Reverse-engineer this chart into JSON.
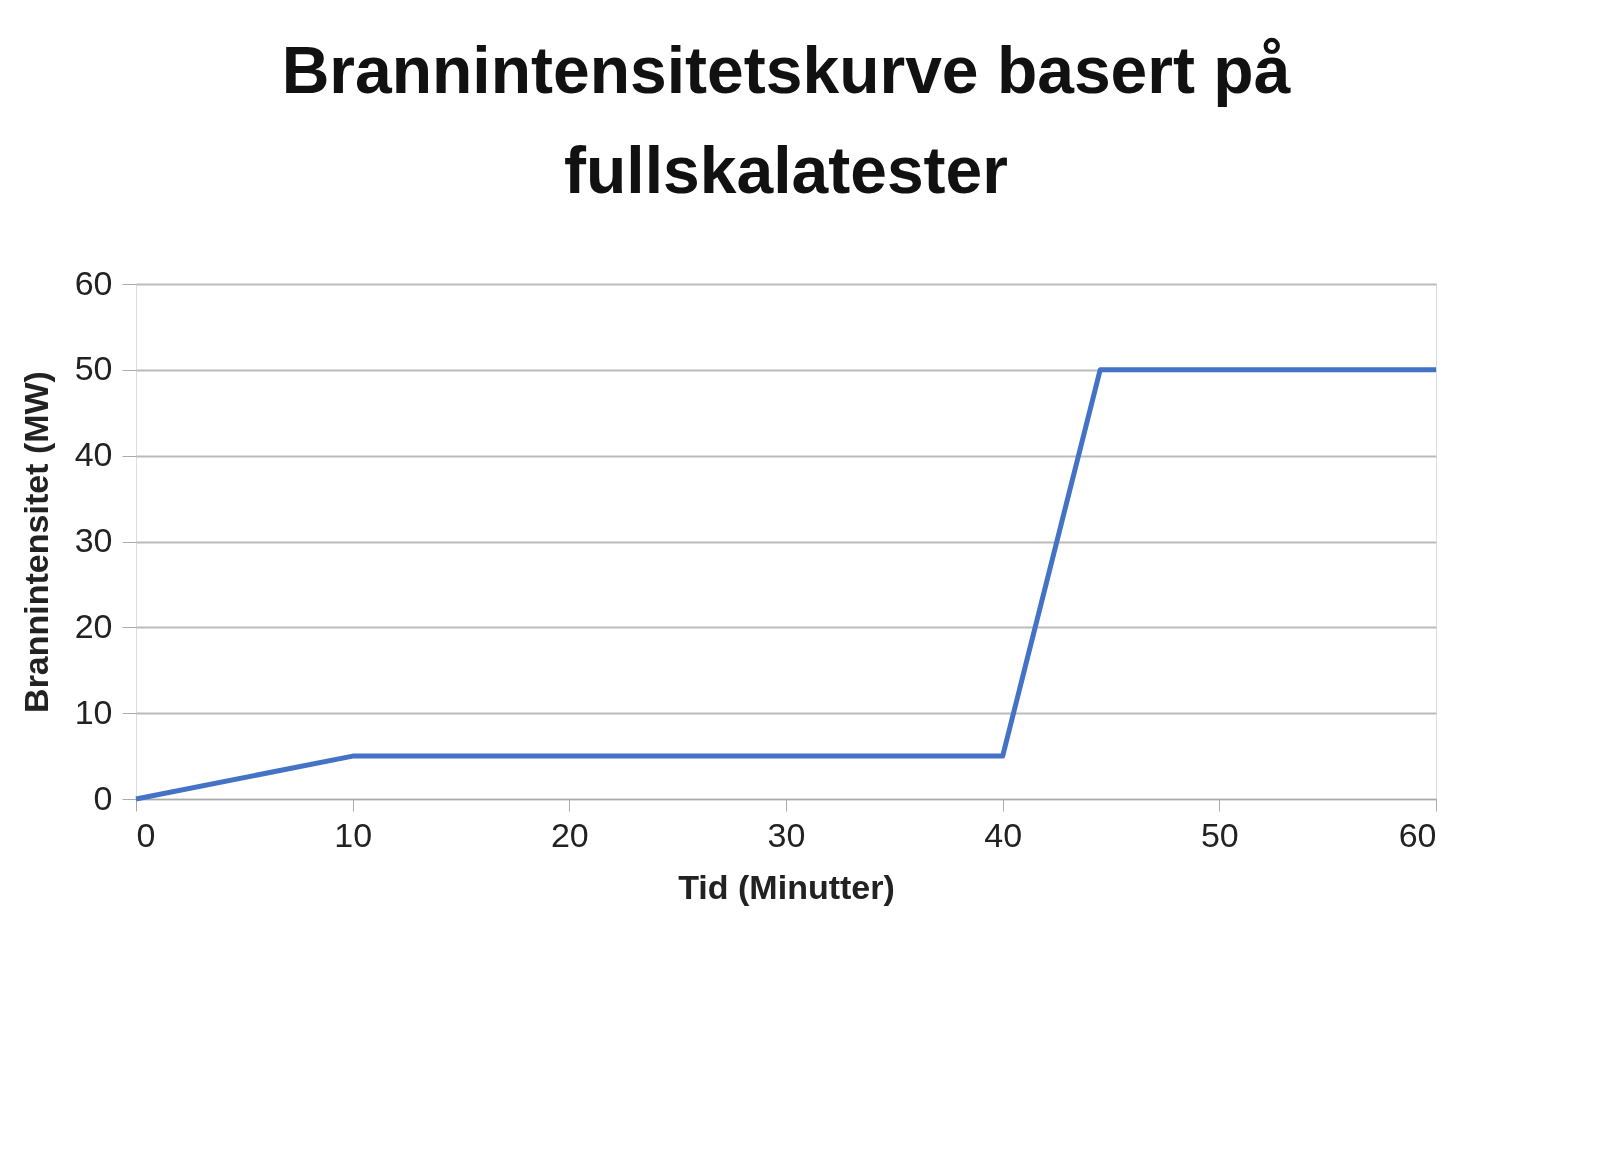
{
  "chart_data": {
    "type": "line",
    "title": "Brannintensitetskurve basert på fullskalatester",
    "xlabel": "Tid (Minutter)",
    "ylabel": "Brannintensitet (MW)",
    "x": [
      0,
      10,
      40,
      44.5,
      60
    ],
    "series": [
      {
        "color": "#4472c4",
        "values": [
          0,
          5,
          5,
          50,
          50
        ]
      }
    ],
    "xlim": [
      0,
      60
    ],
    "xticks": [
      0,
      10,
      20,
      30,
      40,
      50,
      60
    ],
    "ylim": [
      0,
      60
    ],
    "yticks": [
      0,
      10,
      20,
      30,
      40,
      50,
      60
    ],
    "grid": "y",
    "legend": false,
    "marker": "none",
    "line_style": "solid"
  }
}
